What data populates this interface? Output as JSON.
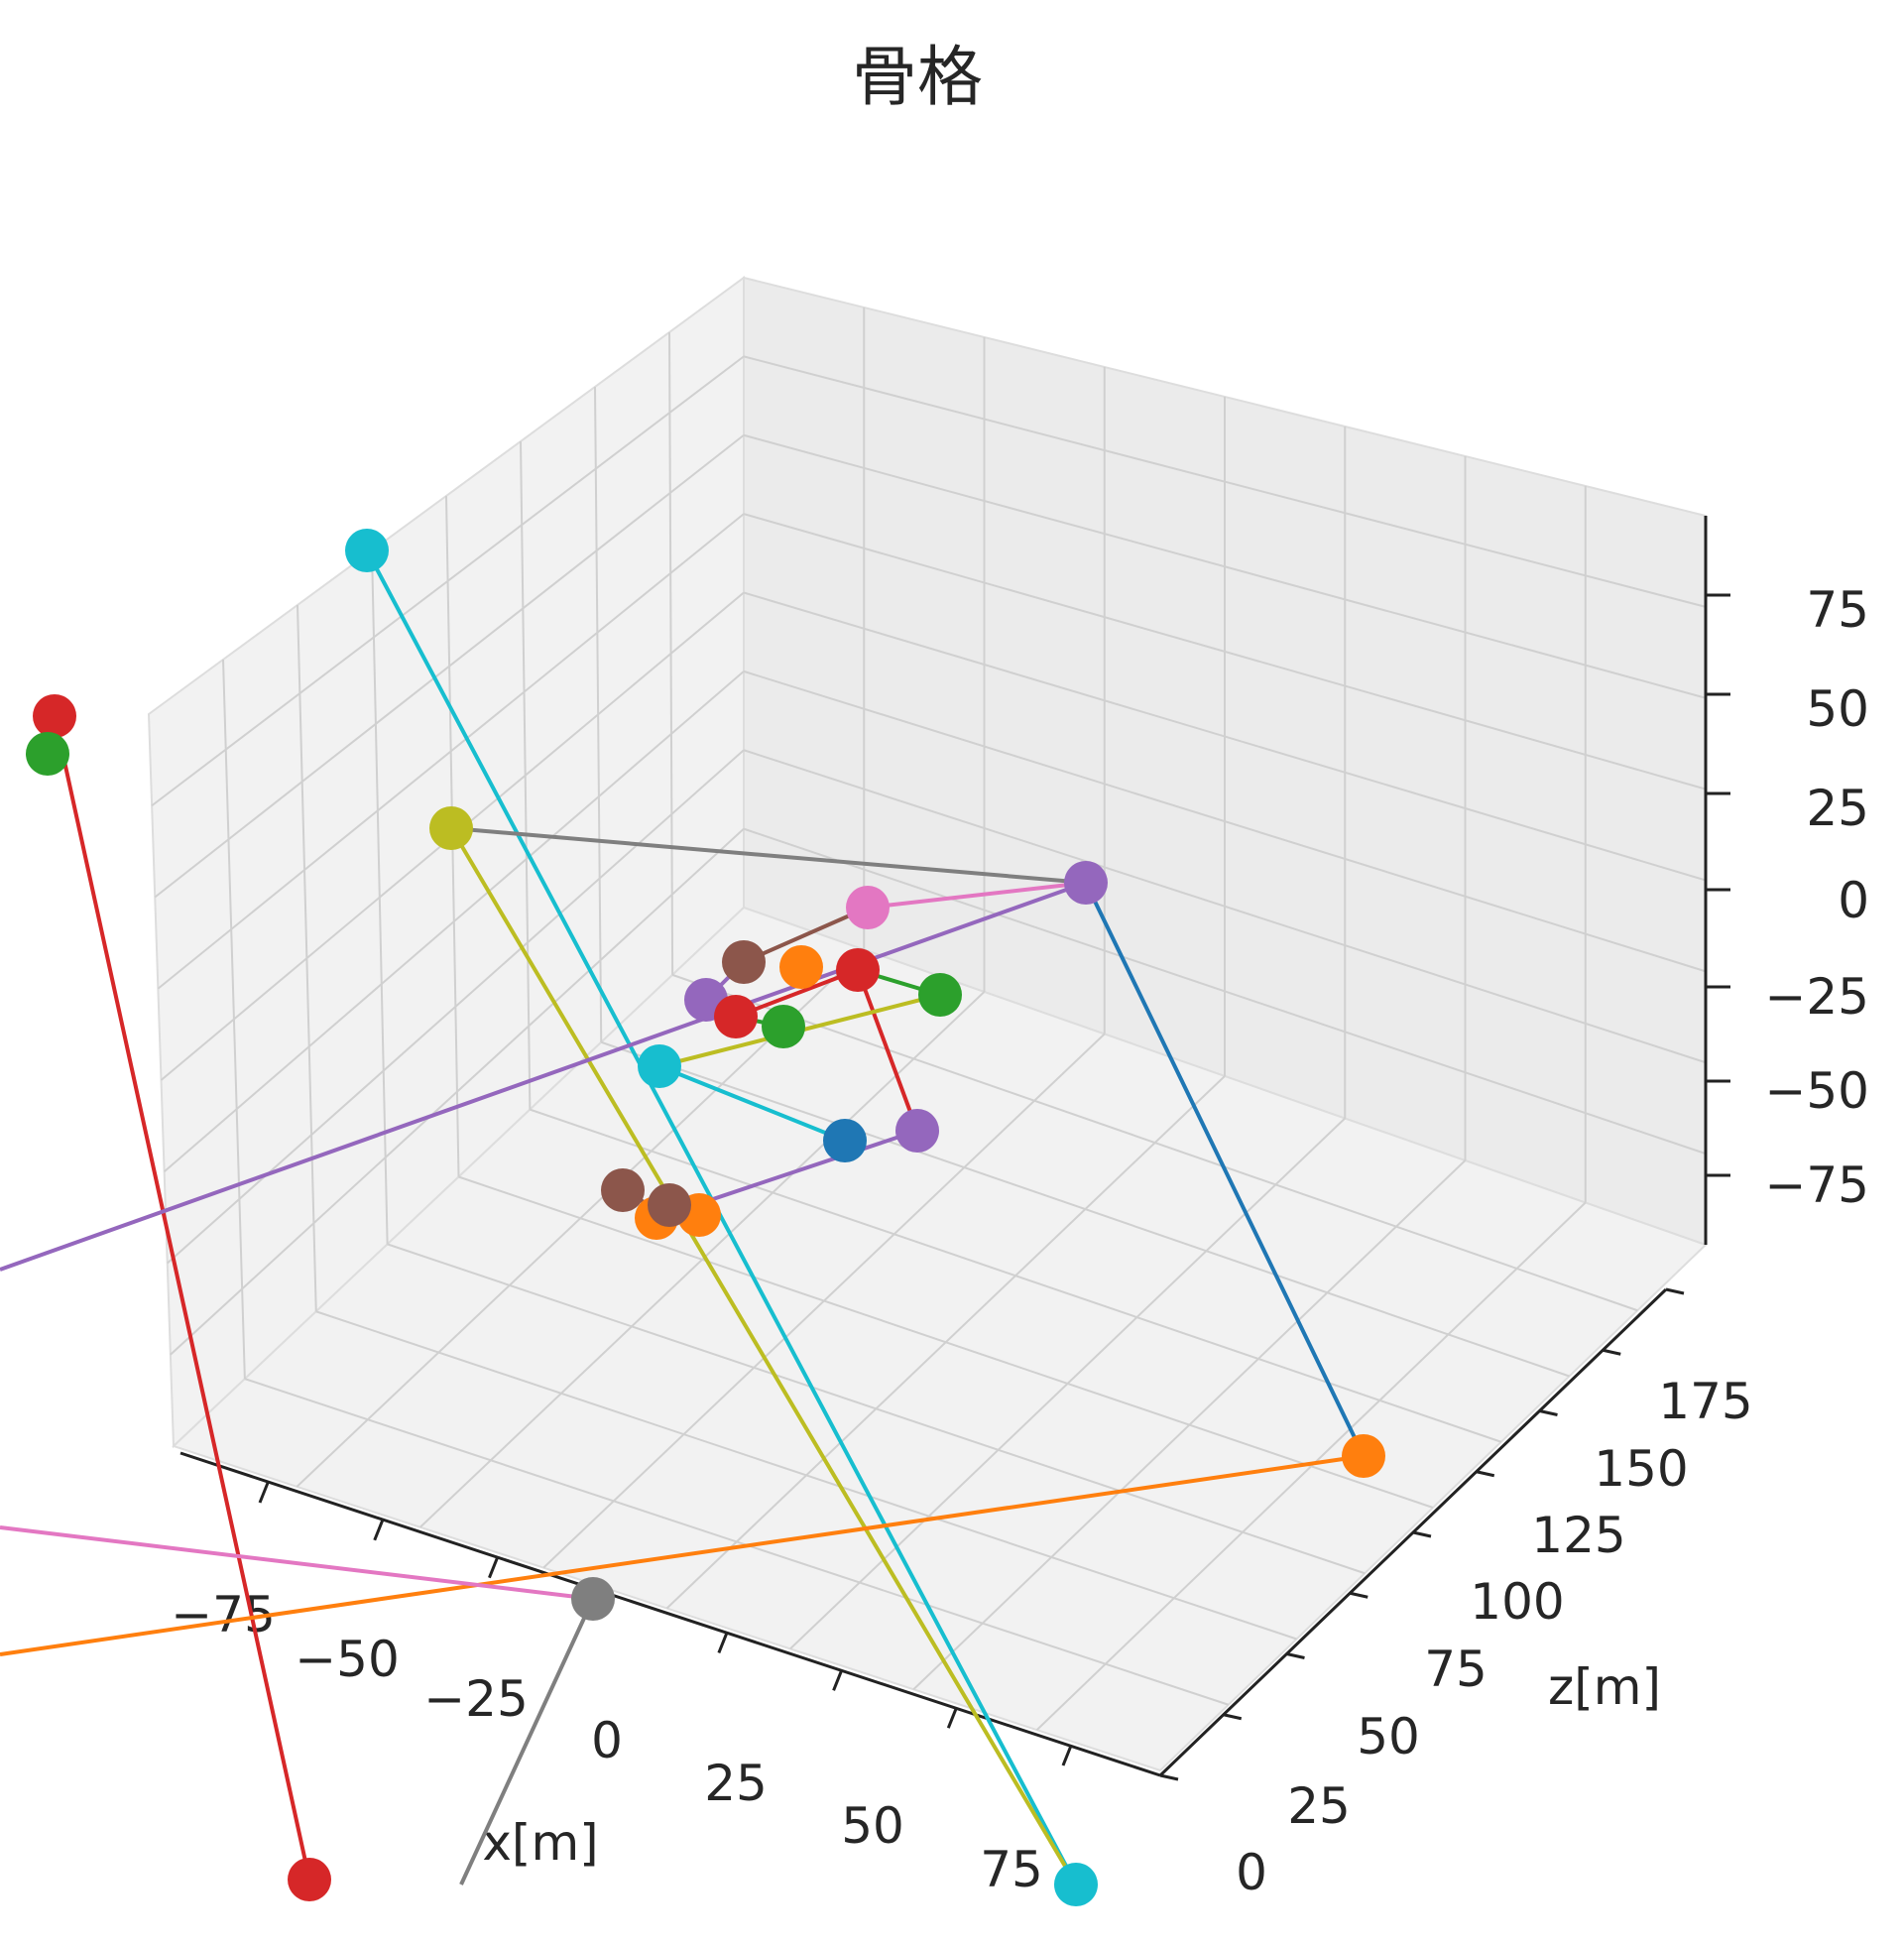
{
  "chart_data": {
    "type": "scatter",
    "projection": "3d",
    "title": "骨格",
    "axes": {
      "x": {
        "label": "x[m]",
        "ticks": [
          "−75",
          "−50",
          "−25",
          "0",
          "25",
          "50",
          "75"
        ]
      },
      "z": {
        "label": "z[m]",
        "ticks": [
          "0",
          "25",
          "50",
          "75",
          "100",
          "125",
          "150",
          "175"
        ]
      },
      "y": {
        "label": "",
        "ticks": [
          "75",
          "50",
          "25",
          "0",
          "−25",
          "−50",
          "−75"
        ]
      }
    },
    "grid": true,
    "colors": {
      "blue": "#1f77b4",
      "orange": "#ff7f0e",
      "green": "#2ca02c",
      "red": "#d62728",
      "purple": "#9467bd",
      "brown": "#8c564b",
      "pink": "#e377c2",
      "gray": "#7f7f7f",
      "olive": "#bcbd22",
      "cyan": "#17becf"
    },
    "joints_visible": 28,
    "bones_visible": 21
  }
}
